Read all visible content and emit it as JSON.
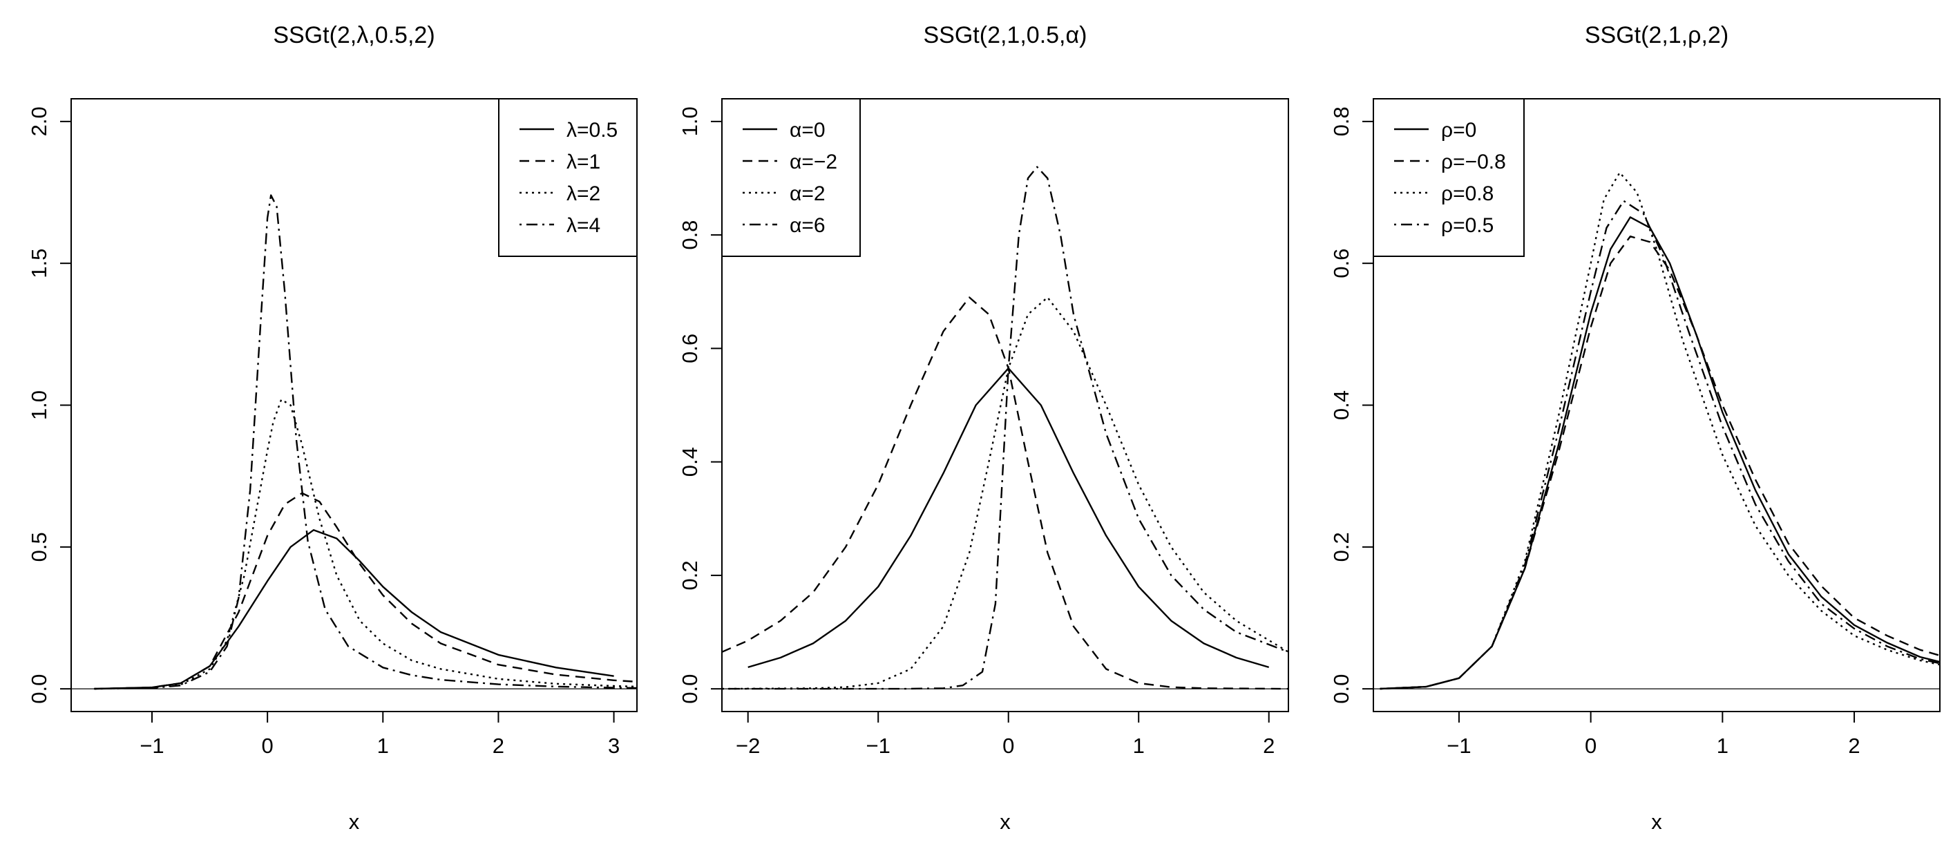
{
  "chart_data": [
    {
      "type": "line",
      "title": "SSGt(2,λ,0.5,2)",
      "xlabel": "x",
      "ylabel": "",
      "xlim": [
        -1.7,
        3.2
      ],
      "ylim": [
        -0.08,
        2.08
      ],
      "xticks": [
        -1,
        0,
        1,
        2,
        3
      ],
      "xtick_labels": [
        "−1",
        "0",
        "1",
        "2",
        "3"
      ],
      "yticks": [
        0.0,
        0.5,
        1.0,
        1.5,
        2.0
      ],
      "ytick_labels": [
        "0.0",
        "0.5",
        "1.0",
        "1.5",
        "2.0"
      ],
      "grid": false,
      "legend_position": "top-right",
      "series": [
        {
          "name": "λ=0.5",
          "style": "solid",
          "x": [
            -1.5,
            -1.0,
            -0.75,
            -0.5,
            -0.25,
            0.0,
            0.2,
            0.4,
            0.6,
            0.8,
            1.0,
            1.25,
            1.5,
            2.0,
            2.5,
            3.0
          ],
          "y": [
            0.0,
            0.005,
            0.02,
            0.08,
            0.22,
            0.38,
            0.5,
            0.56,
            0.53,
            0.45,
            0.36,
            0.27,
            0.2,
            0.12,
            0.075,
            0.045
          ]
        },
        {
          "name": "λ=1",
          "style": "dashed",
          "x": [
            -1.5,
            -1.0,
            -0.75,
            -0.5,
            -0.25,
            0.0,
            0.15,
            0.3,
            0.45,
            0.6,
            0.8,
            1.0,
            1.25,
            1.5,
            2.0,
            2.5,
            3.0,
            3.2
          ],
          "y": [
            0.0,
            0.005,
            0.02,
            0.08,
            0.27,
            0.54,
            0.65,
            0.69,
            0.66,
            0.57,
            0.44,
            0.33,
            0.23,
            0.16,
            0.085,
            0.05,
            0.03,
            0.025
          ]
        },
        {
          "name": "λ=2",
          "style": "dotted",
          "x": [
            -1.5,
            -1.0,
            -0.75,
            -0.5,
            -0.35,
            -0.2,
            -0.1,
            0.0,
            0.05,
            0.12,
            0.2,
            0.3,
            0.45,
            0.6,
            0.8,
            1.0,
            1.25,
            1.5,
            2.0,
            2.5,
            3.0,
            3.2
          ],
          "y": [
            0.0,
            0.004,
            0.015,
            0.07,
            0.17,
            0.4,
            0.62,
            0.84,
            0.94,
            1.02,
            1.0,
            0.86,
            0.6,
            0.4,
            0.24,
            0.16,
            0.1,
            0.07,
            0.035,
            0.018,
            0.01,
            0.008
          ]
        },
        {
          "name": "λ=4",
          "style": "dotdash",
          "x": [
            -1.5,
            -1.0,
            -0.75,
            -0.5,
            -0.35,
            -0.25,
            -0.15,
            -0.05,
            0.0,
            0.03,
            0.08,
            0.15,
            0.25,
            0.35,
            0.5,
            0.7,
            1.0,
            1.25,
            1.5,
            2.0,
            2.5,
            3.0,
            3.2
          ],
          "y": [
            0.0,
            0.003,
            0.012,
            0.06,
            0.15,
            0.32,
            0.7,
            1.35,
            1.66,
            1.74,
            1.7,
            1.4,
            0.88,
            0.52,
            0.28,
            0.15,
            0.075,
            0.048,
            0.032,
            0.016,
            0.008,
            0.004,
            0.003
          ]
        }
      ]
    },
    {
      "type": "line",
      "title": "SSGt(2,1,0.5,α)",
      "xlabel": "x",
      "ylabel": "",
      "xlim": [
        -2.2,
        2.15
      ],
      "ylim": [
        -0.04,
        1.04
      ],
      "xticks": [
        -2,
        -1,
        0,
        1,
        2
      ],
      "xtick_labels": [
        "−2",
        "−1",
        "0",
        "1",
        "2"
      ],
      "yticks": [
        0.0,
        0.2,
        0.4,
        0.6,
        0.8,
        1.0
      ],
      "ytick_labels": [
        "0.0",
        "0.2",
        "0.4",
        "0.6",
        "0.8",
        "1.0"
      ],
      "grid": false,
      "legend_position": "top-left",
      "series": [
        {
          "name": "α=0",
          "style": "solid",
          "x": [
            -2.0,
            -1.75,
            -1.5,
            -1.25,
            -1.0,
            -0.75,
            -0.5,
            -0.25,
            0.0,
            0.25,
            0.5,
            0.75,
            1.0,
            1.25,
            1.5,
            1.75,
            2.0
          ],
          "y": [
            0.038,
            0.055,
            0.08,
            0.12,
            0.18,
            0.27,
            0.38,
            0.5,
            0.565,
            0.5,
            0.38,
            0.27,
            0.18,
            0.12,
            0.08,
            0.055,
            0.038
          ]
        },
        {
          "name": "α=−2",
          "style": "dashed",
          "x": [
            -2.2,
            -2.0,
            -1.75,
            -1.5,
            -1.25,
            -1.0,
            -0.75,
            -0.5,
            -0.3,
            -0.15,
            0.0,
            0.15,
            0.3,
            0.5,
            0.75,
            1.0,
            1.25,
            1.5,
            2.15
          ],
          "y": [
            0.065,
            0.085,
            0.12,
            0.17,
            0.25,
            0.36,
            0.5,
            0.63,
            0.69,
            0.66,
            0.565,
            0.4,
            0.24,
            0.11,
            0.035,
            0.01,
            0.003,
            0.001,
            0.0
          ]
        },
        {
          "name": "α=2",
          "style": "dotted",
          "x": [
            -2.2,
            -1.5,
            -1.25,
            -1.0,
            -0.75,
            -0.5,
            -0.3,
            -0.15,
            0.0,
            0.15,
            0.3,
            0.5,
            0.75,
            1.0,
            1.25,
            1.5,
            1.75,
            2.15
          ],
          "y": [
            0.0,
            0.001,
            0.003,
            0.01,
            0.035,
            0.11,
            0.24,
            0.4,
            0.565,
            0.66,
            0.69,
            0.63,
            0.5,
            0.36,
            0.25,
            0.17,
            0.12,
            0.065
          ]
        },
        {
          "name": "α=6",
          "style": "dotdash",
          "x": [
            -2.2,
            -0.8,
            -0.5,
            -0.35,
            -0.2,
            -0.1,
            0.0,
            0.08,
            0.15,
            0.22,
            0.3,
            0.4,
            0.5,
            0.75,
            1.0,
            1.25,
            1.5,
            1.75,
            2.15
          ],
          "y": [
            0.0,
            0.0,
            0.001,
            0.006,
            0.03,
            0.15,
            0.565,
            0.8,
            0.9,
            0.92,
            0.9,
            0.8,
            0.66,
            0.45,
            0.3,
            0.2,
            0.14,
            0.1,
            0.065
          ]
        }
      ]
    },
    {
      "type": "line",
      "title": "SSGt(2,1,ρ,2)",
      "xlabel": "x",
      "ylabel": "",
      "xlim": [
        -1.65,
        2.65
      ],
      "ylim": [
        -0.032,
        0.832
      ],
      "xticks": [
        -1,
        0,
        1,
        2
      ],
      "xtick_labels": [
        "−1",
        "0",
        "1",
        "2"
      ],
      "yticks": [
        0.0,
        0.2,
        0.4,
        0.6,
        0.8
      ],
      "ytick_labels": [
        "0.0",
        "0.2",
        "0.4",
        "0.6",
        "0.8"
      ],
      "grid": false,
      "legend_position": "top-left",
      "series": [
        {
          "name": "ρ=0",
          "style": "solid",
          "x": [
            -1.6,
            -1.25,
            -1.0,
            -0.75,
            -0.5,
            -0.25,
            0.0,
            0.15,
            0.3,
            0.45,
            0.6,
            0.8,
            1.0,
            1.25,
            1.5,
            1.75,
            2.0,
            2.25,
            2.5,
            2.65
          ],
          "y": [
            0.0,
            0.003,
            0.015,
            0.06,
            0.17,
            0.34,
            0.53,
            0.62,
            0.665,
            0.65,
            0.6,
            0.5,
            0.39,
            0.28,
            0.19,
            0.13,
            0.09,
            0.065,
            0.045,
            0.038
          ]
        },
        {
          "name": "ρ=−0.8",
          "style": "dashed",
          "x": [
            -1.6,
            -1.25,
            -1.0,
            -0.75,
            -0.5,
            -0.25,
            0.0,
            0.15,
            0.3,
            0.45,
            0.6,
            0.8,
            1.0,
            1.25,
            1.5,
            1.75,
            2.0,
            2.25,
            2.5,
            2.65
          ],
          "y": [
            0.0,
            0.003,
            0.015,
            0.06,
            0.17,
            0.33,
            0.51,
            0.6,
            0.638,
            0.63,
            0.59,
            0.5,
            0.4,
            0.295,
            0.205,
            0.145,
            0.1,
            0.075,
            0.055,
            0.047
          ]
        },
        {
          "name": "ρ=0.8",
          "style": "dotted",
          "x": [
            -1.6,
            -1.25,
            -1.0,
            -0.75,
            -0.5,
            -0.25,
            0.0,
            0.1,
            0.22,
            0.35,
            0.5,
            0.7,
            1.0,
            1.25,
            1.5,
            1.75,
            2.0,
            2.25,
            2.5,
            2.65
          ],
          "y": [
            0.0,
            0.003,
            0.015,
            0.06,
            0.18,
            0.38,
            0.6,
            0.69,
            0.728,
            0.7,
            0.62,
            0.49,
            0.33,
            0.23,
            0.16,
            0.11,
            0.075,
            0.055,
            0.04,
            0.034
          ]
        },
        {
          "name": "ρ=0.5",
          "style": "dotdash",
          "x": [
            -1.6,
            -1.25,
            -1.0,
            -0.75,
            -0.5,
            -0.25,
            0.0,
            0.12,
            0.25,
            0.4,
            0.55,
            0.75,
            1.0,
            1.25,
            1.5,
            1.75,
            2.0,
            2.25,
            2.5,
            2.65
          ],
          "y": [
            0.0,
            0.003,
            0.015,
            0.06,
            0.175,
            0.36,
            0.56,
            0.65,
            0.688,
            0.67,
            0.61,
            0.5,
            0.37,
            0.26,
            0.18,
            0.12,
            0.085,
            0.06,
            0.042,
            0.036
          ]
        }
      ]
    }
  ]
}
